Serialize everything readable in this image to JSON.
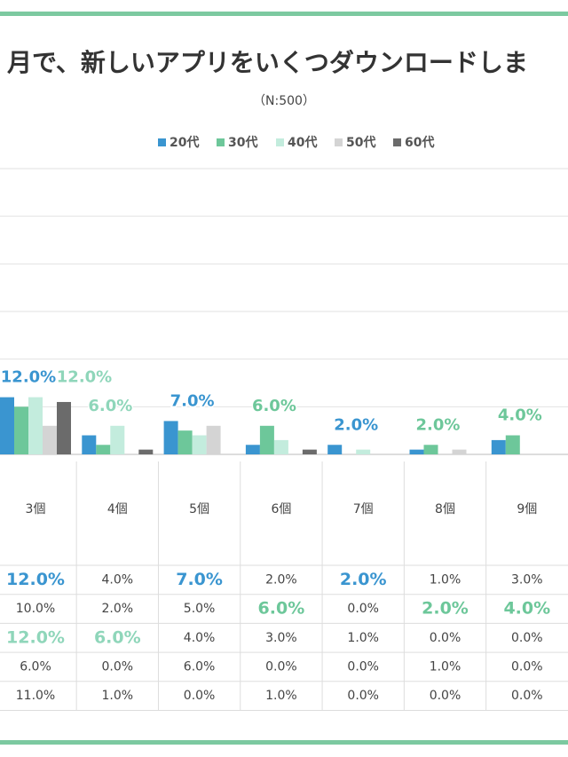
{
  "chart_data": {
    "type": "bar",
    "title": "月で、新しいアプリをいくつダウンロードしま",
    "subtitle": "（N:500）",
    "categories": [
      "3個",
      "4個",
      "5個",
      "6個",
      "7個",
      "8個",
      "9個"
    ],
    "series": [
      {
        "name": "20代",
        "color": "#3a95d0",
        "values": [
          12.0,
          4.0,
          7.0,
          2.0,
          2.0,
          1.0,
          3.0
        ],
        "value_labels": [
          "12.0%",
          "4.0%",
          "7.0%",
          "2.0%",
          "2.0%",
          "1.0%",
          "3.0%"
        ]
      },
      {
        "name": "30代",
        "color": "#6dc79a",
        "values": [
          10.0,
          2.0,
          5.0,
          6.0,
          0.0,
          2.0,
          4.0
        ],
        "value_labels": [
          "10.0%",
          "2.0%",
          "5.0%",
          "6.0%",
          "0.0%",
          "2.0%",
          "4.0%"
        ]
      },
      {
        "name": "40代",
        "color": "#c3ecdd",
        "values": [
          12.0,
          6.0,
          4.0,
          3.0,
          1.0,
          0.0,
          0.0
        ],
        "value_labels": [
          "12.0%",
          "6.0%",
          "4.0%",
          "3.0%",
          "1.0%",
          "0.0%",
          "0.0%"
        ]
      },
      {
        "name": "50代",
        "color": "#d4d4d4",
        "values": [
          6.0,
          0.0,
          6.0,
          0.0,
          0.0,
          1.0,
          0.0
        ],
        "value_labels": [
          "6.0%",
          "0.0%",
          "6.0%",
          "0.0%",
          "0.0%",
          "1.0%",
          "0.0%"
        ]
      },
      {
        "name": "60代",
        "color": "#6b6b6b",
        "values": [
          11.0,
          1.0,
          0.0,
          1.0,
          0.0,
          0.0,
          0.0
        ],
        "value_labels": [
          "11.0%",
          "1.0%",
          "0.0%",
          "1.0%",
          "0.0%",
          "0.0%",
          "0.0%"
        ]
      }
    ],
    "ylim": [
      0,
      60
    ],
    "yticks": [
      0,
      10,
      20,
      30,
      40,
      50,
      60
    ],
    "grid": true
  }
}
